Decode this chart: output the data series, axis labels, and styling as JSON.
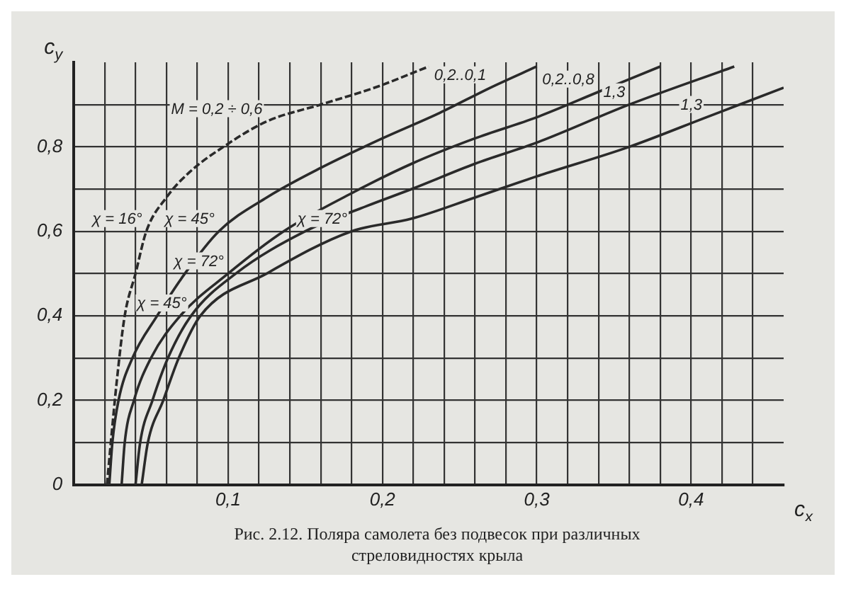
{
  "chart_data": {
    "type": "line",
    "xlabel": "c$_{x}$",
    "ylabel": "c$_{y}$",
    "xlim": [
      0,
      0.46
    ],
    "ylim": [
      0,
      1.0
    ],
    "xticks": [
      {
        "value": 0.02,
        "label": null
      },
      {
        "value": 0.04,
        "label": null
      },
      {
        "value": 0.06,
        "label": null
      },
      {
        "value": 0.08,
        "label": null
      },
      {
        "value": 0.1,
        "label": "0,1"
      },
      {
        "value": 0.12,
        "label": null
      },
      {
        "value": 0.14,
        "label": null
      },
      {
        "value": 0.16,
        "label": null
      },
      {
        "value": 0.18,
        "label": null
      },
      {
        "value": 0.2,
        "label": "0,2"
      },
      {
        "value": 0.22,
        "label": null
      },
      {
        "value": 0.24,
        "label": null
      },
      {
        "value": 0.26,
        "label": null
      },
      {
        "value": 0.28,
        "label": null
      },
      {
        "value": 0.3,
        "label": "0,3"
      },
      {
        "value": 0.32,
        "label": null
      },
      {
        "value": 0.34,
        "label": null
      },
      {
        "value": 0.36,
        "label": null
      },
      {
        "value": 0.38,
        "label": null
      },
      {
        "value": 0.4,
        "label": "0,4"
      },
      {
        "value": 0.42,
        "label": null
      },
      {
        "value": 0.44,
        "label": null
      }
    ],
    "yticks": [
      0,
      {
        "value": 0.1,
        "label": null
      },
      {
        "value": 0.2,
        "label": "0,2"
      },
      {
        "value": 0.3,
        "label": null
      },
      {
        "value": 0.4,
        "label": "0,4"
      },
      {
        "value": 0.5,
        "label": null
      },
      {
        "value": 0.6,
        "label": "0,6"
      },
      {
        "value": 0.7,
        "label": null
      },
      {
        "value": 0.8,
        "label": "0,8"
      },
      {
        "value": 0.9,
        "label": null
      }
    ],
    "grid": true,
    "legend": false,
    "marker": "none",
    "series": [
      {
        "color": "#2a2a2a",
        "line_style": "dashed",
        "x": [
          0.0215,
          0.024,
          0.028,
          0.033,
          0.04,
          0.047,
          0.06,
          0.075,
          0.097,
          0.125,
          0.16,
          0.195,
          0.23
        ],
        "values": [
          0,
          0.1,
          0.25,
          0.4,
          0.5,
          0.6,
          0.68,
          0.74,
          0.8,
          0.86,
          0.9,
          0.94,
          0.99
        ]
      },
      {
        "color": "#2a2a2a",
        "line_style": "solid",
        "x": [
          0.023,
          0.025,
          0.029,
          0.038,
          0.054,
          0.072,
          0.094,
          0.125,
          0.16,
          0.2,
          0.237,
          0.27,
          0.3
        ],
        "values": [
          0,
          0.1,
          0.2,
          0.3,
          0.4,
          0.5,
          0.6,
          0.68,
          0.75,
          0.82,
          0.88,
          0.94,
          0.99
        ]
      },
      {
        "color": "#2a2a2a",
        "line_style": "solid",
        "x": [
          0.031,
          0.033,
          0.039,
          0.05,
          0.069,
          0.1,
          0.136,
          0.18,
          0.219,
          0.26,
          0.3,
          0.34,
          0.38
        ],
        "values": [
          0,
          0.1,
          0.2,
          0.3,
          0.4,
          0.5,
          0.6,
          0.69,
          0.76,
          0.82,
          0.87,
          0.93,
          0.99
        ]
      },
      {
        "color": "#2a2a2a",
        "line_style": "solid",
        "x": [
          0.04,
          0.043,
          0.051,
          0.061,
          0.076,
          0.105,
          0.15,
          0.19,
          0.219,
          0.26,
          0.3,
          0.36,
          0.428
        ],
        "values": [
          0,
          0.1,
          0.2,
          0.3,
          0.4,
          0.5,
          0.6,
          0.66,
          0.7,
          0.76,
          0.81,
          0.9,
          0.99
        ]
      },
      {
        "color": "#2a2a2a",
        "line_style": "solid",
        "x": [
          0.044,
          0.048,
          0.058,
          0.068,
          0.082,
          0.125,
          0.18,
          0.219,
          0.26,
          0.3,
          0.36,
          0.41,
          0.46
        ],
        "values": [
          0,
          0.1,
          0.2,
          0.3,
          0.4,
          0.5,
          0.6,
          0.63,
          0.68,
          0.73,
          0.8,
          0.87,
          0.94
        ]
      }
    ],
    "annotations": [
      {
        "text": "χ = 16°",
        "x": 0.047,
        "y": 0.6
      },
      {
        "text": "M = 0,2 ÷ 0,6",
        "x": 0.125,
        "y": 0.86
      },
      {
        "text": "χ = 45°",
        "x": 0.094,
        "y": 0.6
      },
      {
        "text": "χ = 72°",
        "x": 0.1,
        "y": 0.5
      },
      {
        "text": "χ = 45°",
        "x": 0.076,
        "y": 0.4
      },
      {
        "text": "χ = 72°",
        "x": 0.18,
        "y": 0.6
      },
      {
        "text": "0,2..0,1",
        "x": 0.27,
        "y": 0.94
      },
      {
        "text": "0,2..0,8",
        "x": 0.34,
        "y": 0.93
      },
      {
        "text": "1,3",
        "x": 0.36,
        "y": 0.9
      },
      {
        "text": "1,3",
        "x": 0.41,
        "y": 0.87
      },
      "Рис. 2.12. Поляра самолета без подвесок при различных стреловидностях крыла"
    ]
  }
}
